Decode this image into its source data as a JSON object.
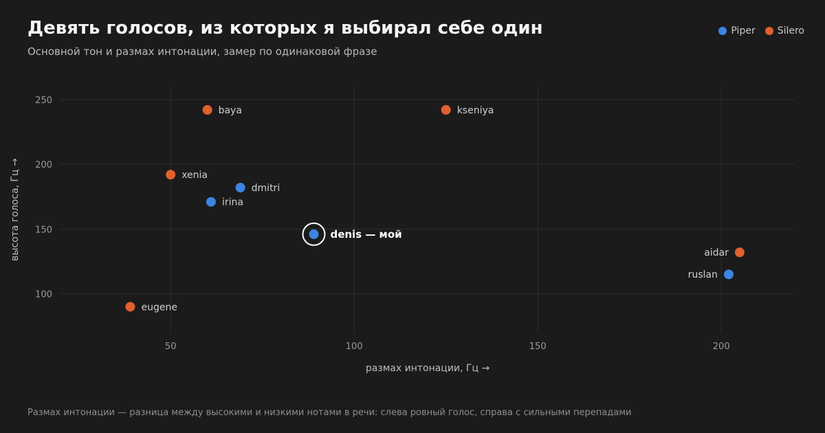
{
  "header": {
    "title": "Девять голосов, из которых я выбирал себе один",
    "subtitle": "Основной тон и размах интонации, замер по одинаковой фразе"
  },
  "legend": [
    {
      "name": "Piper",
      "color": "#3d85e0"
    },
    {
      "name": "Silero",
      "color": "#e0602f"
    }
  ],
  "footnote": "Размах интонации — разница между высокими и низкими нотами в речи: слева ровный голос, справа с сильными перепадами",
  "chart_data": {
    "type": "scatter",
    "xlabel": "размах интонации, Гц →",
    "ylabel": "высота голоса, Гц →",
    "xlim": [
      20,
      220
    ],
    "ylim": [
      70,
      260
    ],
    "xticks": [
      {
        "value": 50,
        "label": "50"
      },
      {
        "value": 100,
        "label": "100"
      },
      {
        "value": 150,
        "label": "150"
      },
      {
        "value": 200,
        "label": "200"
      }
    ],
    "yticks": [
      {
        "value": 100,
        "label": "100"
      },
      {
        "value": 150,
        "label": "150"
      },
      {
        "value": 200,
        "label": "200"
      },
      {
        "value": 250,
        "label": "250"
      }
    ],
    "grid": true,
    "legend_position": "top-right",
    "points": [
      {
        "label": "baya",
        "series": "Silero",
        "x": 60,
        "y": 242,
        "label_side": "right",
        "highlight": false
      },
      {
        "label": "kseniya",
        "series": "Silero",
        "x": 125,
        "y": 242,
        "label_side": "right",
        "highlight": false
      },
      {
        "label": "xenia",
        "series": "Silero",
        "x": 50,
        "y": 192,
        "label_side": "right",
        "highlight": false
      },
      {
        "label": "dmitri",
        "series": "Piper",
        "x": 69,
        "y": 182,
        "label_side": "right",
        "highlight": false
      },
      {
        "label": "irina",
        "series": "Piper",
        "x": 61,
        "y": 171,
        "label_side": "right",
        "highlight": false
      },
      {
        "label": "denis — мой",
        "series": "Piper",
        "x": 89,
        "y": 146,
        "label_side": "right",
        "highlight": true
      },
      {
        "label": "aidar",
        "series": "Silero",
        "x": 205,
        "y": 132,
        "label_side": "left",
        "highlight": false
      },
      {
        "label": "ruslan",
        "series": "Piper",
        "x": 202,
        "y": 115,
        "label_side": "left",
        "highlight": false
      },
      {
        "label": "eugene",
        "series": "Silero",
        "x": 39,
        "y": 90,
        "label_side": "right",
        "highlight": false
      }
    ]
  }
}
